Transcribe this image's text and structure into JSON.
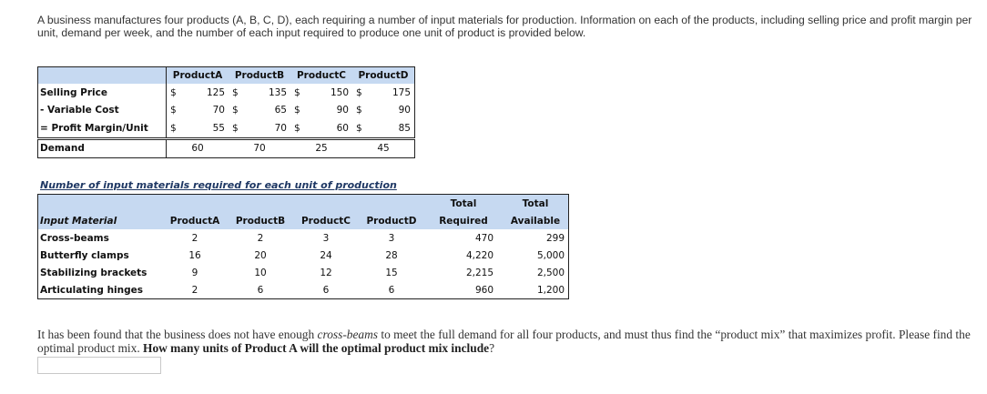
{
  "intro_text": "A business manufactures four products (A, B, C, D), each requiring a number of input materials for production.  Information on each of the products, including selling price and profit margin per unit, demand per week, and the number of each input required to produce one unit of product is provided below.",
  "product_table": {
    "headers": [
      "ProductA",
      "ProductB",
      "ProductC",
      "ProductD"
    ],
    "currency_symbol": "$",
    "rows": [
      {
        "label": "Selling Price",
        "values": [
          "125",
          "135",
          "150",
          "175"
        ]
      },
      {
        "label": "- Variable Cost",
        "values": [
          "70",
          "65",
          "90",
          "90"
        ]
      },
      {
        "label": "= Profit Margin/Unit",
        "values": [
          "55",
          "70",
          "60",
          "85"
        ]
      }
    ],
    "demand": {
      "label": "Demand",
      "values": [
        "60",
        "70",
        "25",
        "45"
      ]
    }
  },
  "materials_table": {
    "title": "Number of input materials required for each unit of production",
    "header_material": "Input Material",
    "headers": [
      "ProductA",
      "ProductB",
      "ProductC",
      "ProductD"
    ],
    "total_required_header": [
      "Total",
      "Required"
    ],
    "total_available_header": [
      "Total",
      "Available"
    ],
    "rows": [
      {
        "material": "Cross-beams",
        "values": [
          "2",
          "2",
          "3",
          "3"
        ],
        "total_required": "470",
        "total_available": "299"
      },
      {
        "material": "Butterfly clamps",
        "values": [
          "16",
          "20",
          "24",
          "28"
        ],
        "total_required": "4,220",
        "total_available": "5,000"
      },
      {
        "material": "Stabilizing brackets",
        "values": [
          "9",
          "10",
          "12",
          "15"
        ],
        "total_required": "2,215",
        "total_available": "2,500"
      },
      {
        "material": "Articulating hinges",
        "values": [
          "2",
          "6",
          "6",
          "6"
        ],
        "total_required": "960",
        "total_available": "1,200"
      }
    ]
  },
  "question": {
    "part1": "It has been found that the business does not have enough ",
    "emphasis": "cross-beams",
    "part2": " to meet the full demand for all four products, and must thus find the “product mix” that maximizes profit.  Please find the optimal product mix.  ",
    "bold": "How many units of Product A will the optimal product mix include",
    "end": "?"
  },
  "answer": {
    "value": ""
  }
}
